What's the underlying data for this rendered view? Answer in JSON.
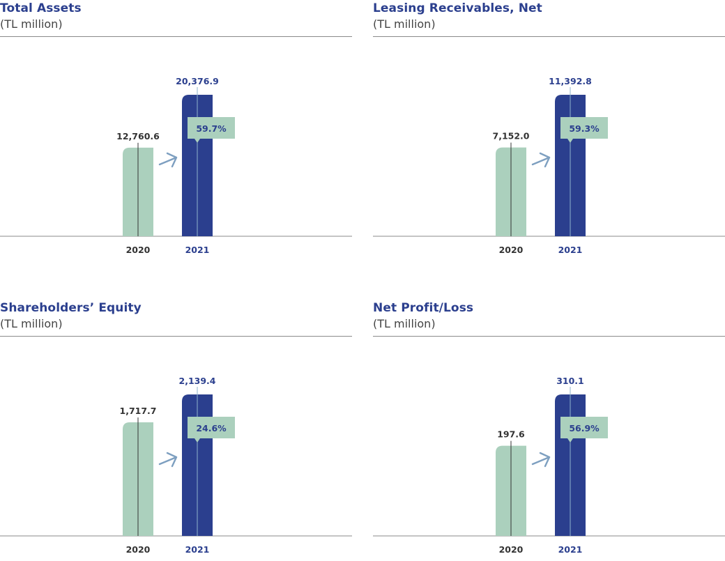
{
  "colors": {
    "title": "#2b3f8e",
    "bar_2020": "#abd0bd",
    "bar_2021": "#2b3f8e",
    "badge": "#abd0bd",
    "arrow": "#7d9fc0",
    "label_2020": "#333333",
    "label_2021": "#2b3f8e"
  },
  "panels": [
    {
      "title": "Total Assets",
      "subtitle": "(TL million)"
    },
    {
      "title": "Leasing Receivables, Net",
      "subtitle": "(TL million)"
    },
    {
      "title": "Shareholders’ Equity",
      "subtitle": "(TL million)"
    },
    {
      "title": "Net Profit/Loss",
      "subtitle": "(TL million)"
    }
  ],
  "chart_data": [
    {
      "type": "bar",
      "title": "Total Assets",
      "subtitle": "(TL million)",
      "categories": [
        "2020",
        "2021"
      ],
      "values": [
        12760.6,
        20376.9
      ],
      "value_labels": [
        "12,760.6",
        "20,376.9"
      ],
      "change_label": "59.7%"
    },
    {
      "type": "bar",
      "title": "Leasing Receivables, Net",
      "subtitle": "(TL million)",
      "categories": [
        "2020",
        "2021"
      ],
      "values": [
        7152.0,
        11392.8
      ],
      "value_labels": [
        "7,152.0",
        "11,392.8"
      ],
      "change_label": "59.3%"
    },
    {
      "type": "bar",
      "title": "Shareholders’ Equity",
      "subtitle": "(TL million)",
      "categories": [
        "2020",
        "2021"
      ],
      "values": [
        1717.7,
        2139.4
      ],
      "value_labels": [
        "1,717.7",
        "2,139.4"
      ],
      "change_label": "24.6%"
    },
    {
      "type": "bar",
      "title": "Net Profit/Loss",
      "subtitle": "(TL million)",
      "categories": [
        "2020",
        "2021"
      ],
      "values": [
        197.6,
        310.1
      ],
      "value_labels": [
        "197.6",
        "310.1"
      ],
      "change_label": "56.9%"
    }
  ]
}
